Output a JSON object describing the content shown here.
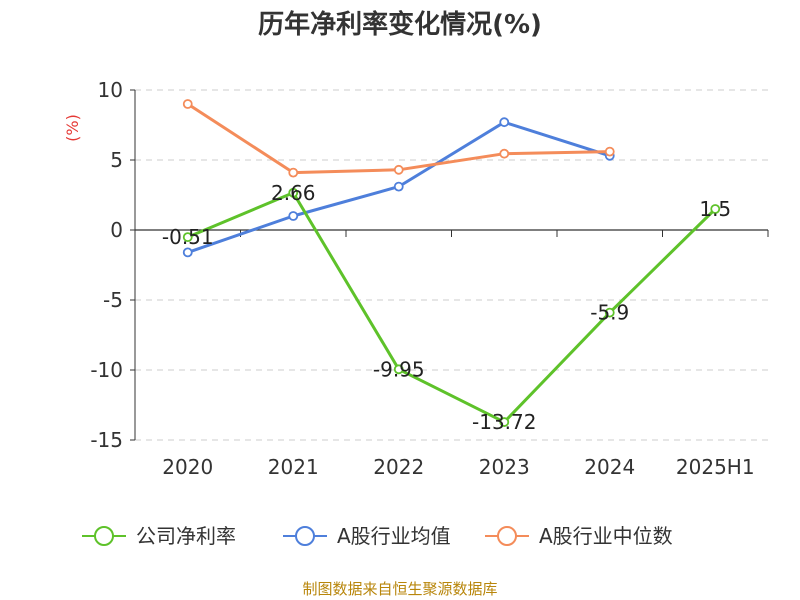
{
  "chart_data": {
    "type": "line",
    "title": "历年净利率变化情况(%)",
    "ylabel": "(%)",
    "xlabel": "",
    "categories": [
      "2020",
      "2021",
      "2022",
      "2023",
      "2024",
      "2025H1"
    ],
    "ylim": [
      -15,
      10
    ],
    "yticks": [
      10,
      5,
      0,
      -5,
      -10,
      -15
    ],
    "grid": true,
    "legend_position": "bottom",
    "series": [
      {
        "name": "公司净利率",
        "color": "#5ec22a",
        "values": [
          -0.51,
          2.66,
          -9.95,
          -13.72,
          -5.9,
          1.5
        ],
        "labels": [
          "-0.51",
          "2.66",
          "-9.95",
          "-13.72",
          "-5.9",
          "1.5"
        ]
      },
      {
        "name": "A股行业均值",
        "color": "#4e7fdb",
        "values": [
          -1.6,
          1.0,
          3.1,
          7.7,
          5.3,
          null
        ]
      },
      {
        "name": "A股行业中位数",
        "color": "#f48c5a",
        "values": [
          9.0,
          4.1,
          4.3,
          5.45,
          5.6,
          null
        ]
      }
    ]
  },
  "source": "制图数据来自恒生聚源数据库"
}
